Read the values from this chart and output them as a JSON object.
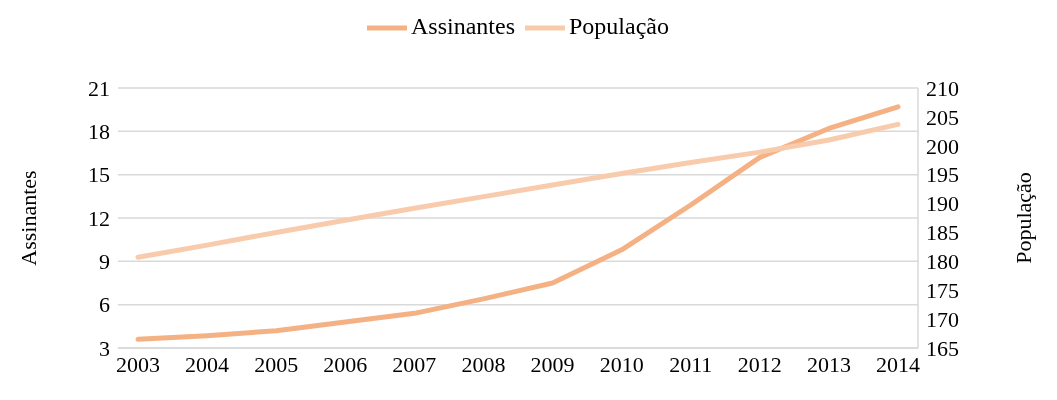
{
  "chart_data": {
    "type": "line",
    "categories": [
      "2003",
      "2004",
      "2005",
      "2006",
      "2007",
      "2008",
      "2009",
      "2010",
      "2011",
      "2012",
      "2013",
      "2014"
    ],
    "series": [
      {
        "name": "Assinantes",
        "color": "#f4b183",
        "values": [
          3.6,
          3.85,
          4.2,
          4.8,
          5.4,
          6.4,
          7.5,
          9.8,
          12.9,
          16.2,
          18.2,
          19.7
        ]
      },
      {
        "name": "População",
        "color": "#f8cbad",
        "axis": "y2",
        "values": [
          180.7,
          182.8,
          185.0,
          187.1,
          189.2,
          191.2,
          193.2,
          195.2,
          197.1,
          198.9,
          201.0,
          203.7
        ]
      }
    ],
    "ylabel": "Assinantes",
    "y2label": "População",
    "ylim": [
      3,
      21
    ],
    "yticks": [
      3,
      6,
      9,
      12,
      15,
      18,
      21
    ],
    "y2lim": [
      165,
      210
    ],
    "y2ticks": [
      165,
      170,
      175,
      180,
      185,
      190,
      195,
      200,
      205,
      210
    ],
    "grid": "y",
    "legend": "top",
    "marker": "none",
    "line_style": "solid"
  }
}
